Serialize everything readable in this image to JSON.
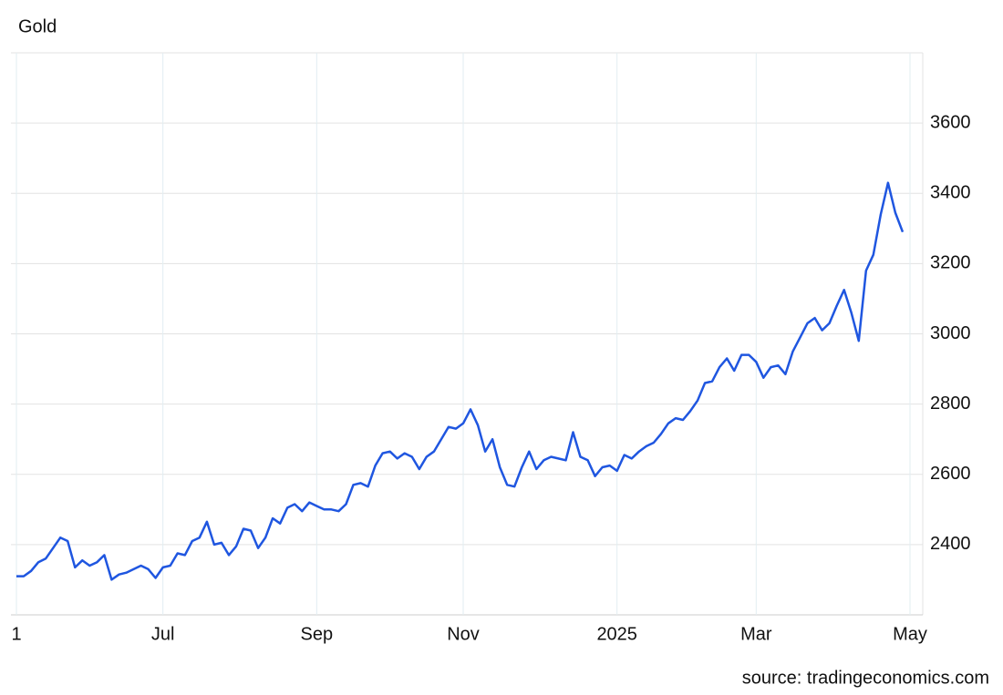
{
  "chart_data": {
    "type": "line",
    "title": "Gold",
    "source": "source: tradingeconomics.com",
    "categories": [
      "1",
      null,
      null,
      null,
      null,
      null,
      null,
      null,
      null,
      null,
      null,
      null,
      null,
      null,
      null,
      null,
      null,
      null,
      null,
      null,
      "Jul",
      null,
      null,
      null,
      null,
      null,
      null,
      null,
      null,
      null,
      null,
      null,
      null,
      null,
      null,
      null,
      null,
      null,
      null,
      null,
      null,
      "Sep",
      null,
      null,
      null,
      null,
      null,
      null,
      null,
      null,
      null,
      null,
      null,
      null,
      null,
      null,
      null,
      null,
      null,
      null,
      null,
      "Nov",
      null,
      null,
      null,
      null,
      null,
      null,
      null,
      null,
      null,
      null,
      null,
      null,
      null,
      null,
      null,
      null,
      null,
      null,
      null,
      null,
      "2025",
      null,
      null,
      null,
      null,
      null,
      null,
      null,
      null,
      null,
      null,
      null,
      null,
      null,
      null,
      null,
      null,
      null,
      null,
      "Mar",
      null,
      null,
      null,
      null,
      null,
      null,
      null,
      null,
      null,
      null,
      null,
      null,
      null,
      null,
      null,
      null,
      null,
      null,
      null,
      null,
      "May"
    ],
    "series": [
      {
        "name": "Gold",
        "color": "#1f56e0",
        "values": [
          2310,
          2310,
          2325,
          2350,
          2360,
          2390,
          2420,
          2410,
          2335,
          2355,
          2340,
          2350,
          2370,
          2300,
          2315,
          2320,
          2330,
          2340,
          2330,
          2305,
          2335,
          2340,
          2375,
          2370,
          2410,
          2420,
          2465,
          2400,
          2405,
          2370,
          2395,
          2445,
          2440,
          2390,
          2420,
          2475,
          2460,
          2505,
          2515,
          2495,
          2520,
          2510,
          2500,
          2500,
          2495,
          2515,
          2570,
          2575,
          2565,
          2625,
          2660,
          2665,
          2645,
          2660,
          2650,
          2615,
          2650,
          2665,
          2700,
          2735,
          2730,
          2745,
          2785,
          2740,
          2665,
          2700,
          2620,
          2570,
          2565,
          2620,
          2665,
          2615,
          2640,
          2650,
          2645,
          2640,
          2720,
          2650,
          2640,
          2595,
          2620,
          2625,
          2610,
          2655,
          2645,
          2665,
          2680,
          2690,
          2715,
          2745,
          2760,
          2755,
          2780,
          2810,
          2860,
          2865,
          2905,
          2930,
          2895,
          2940,
          2940,
          2920,
          2875,
          2905,
          2910,
          2885,
          2950,
          2990,
          3030,
          3045,
          3010,
          3030,
          3080,
          3125,
          3060,
          2980,
          3180,
          3225,
          3340,
          3430,
          3345,
          3290,
          null
        ]
      }
    ],
    "ylim": [
      2200,
      3800
    ],
    "yticks": [
      2400,
      2600,
      2800,
      3000,
      3200,
      3400,
      3600
    ],
    "grid": true
  }
}
